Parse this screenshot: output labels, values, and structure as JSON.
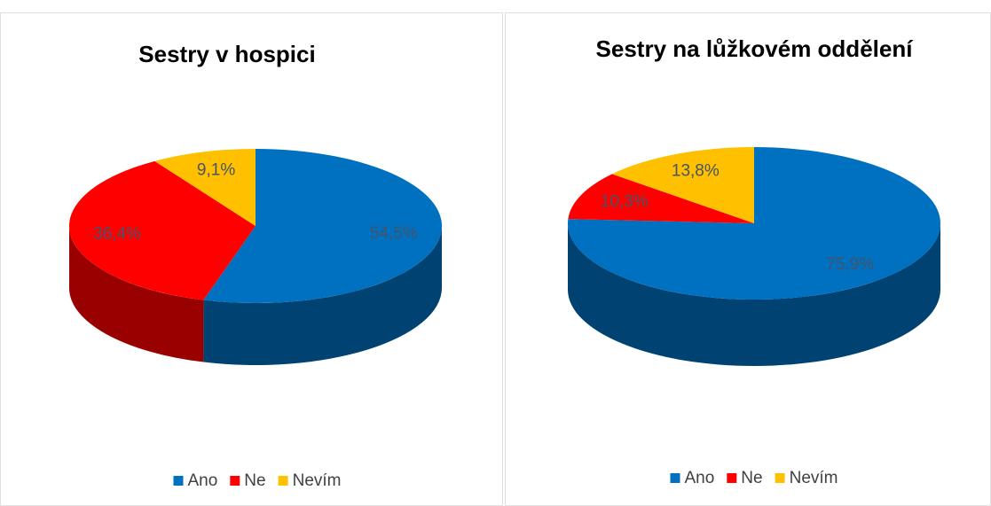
{
  "chart_data": [
    {
      "type": "pie",
      "title": "Sestry v hospici",
      "categories": [
        "Ano",
        "Ne",
        "Nevím"
      ],
      "values": [
        54.5,
        36.4,
        9.1
      ],
      "value_labels": [
        "54,5%",
        "36,4%",
        "9,1%"
      ],
      "colors": [
        "#0070c0",
        "#ff0000",
        "#ffc000"
      ],
      "legend": "bottom"
    },
    {
      "type": "pie",
      "title": "Sestry na lůžkovém oddělení",
      "categories": [
        "Ano",
        "Ne",
        "Nevím"
      ],
      "values": [
        75.9,
        10.3,
        13.8
      ],
      "value_labels": [
        "75,9%",
        "10,3%",
        "13,8%"
      ],
      "colors": [
        "#0070c0",
        "#ff0000",
        "#ffc000"
      ],
      "legend": "bottom"
    }
  ]
}
